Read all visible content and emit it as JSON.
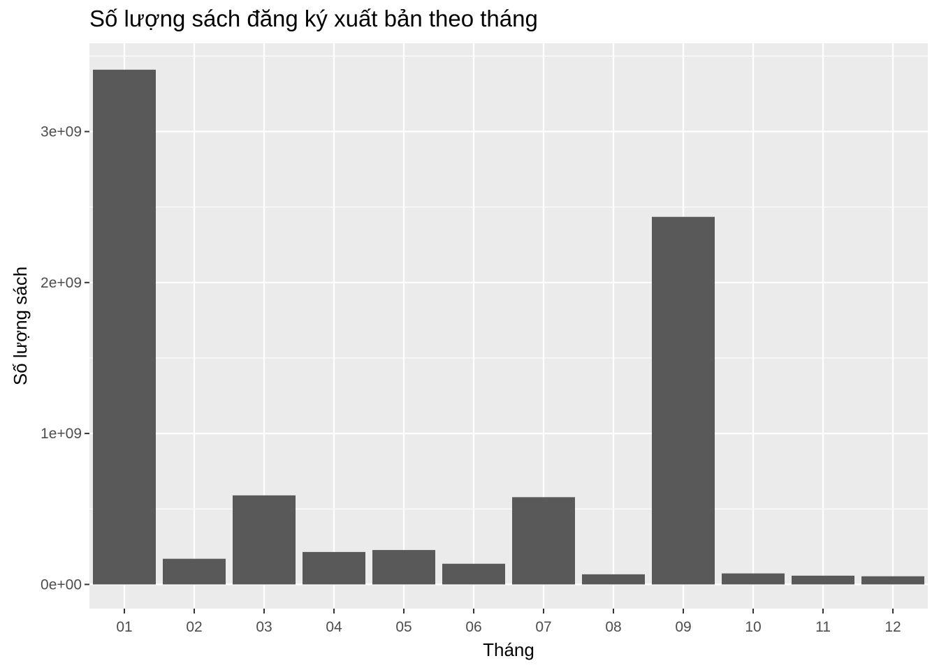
{
  "chart_data": {
    "type": "bar",
    "title": "Số lượng sách đăng ký xuất bản theo tháng",
    "xlabel": "Tháng",
    "ylabel": "Số lượng sách",
    "categories": [
      "01",
      "02",
      "03",
      "04",
      "05",
      "06",
      "07",
      "08",
      "09",
      "10",
      "11",
      "12"
    ],
    "values": [
      3410000000,
      170000000,
      590000000,
      215000000,
      228000000,
      137000000,
      578000000,
      67000000,
      2435000000,
      73000000,
      58000000,
      54000000
    ],
    "ylim": [
      -160000000,
      3585000000
    ],
    "yticks": [
      0,
      1000000000,
      2000000000,
      3000000000
    ],
    "ytick_labels": [
      "0e+00",
      "1e+09",
      "2e+09",
      "3e+09"
    ],
    "grid": true,
    "bar_color": "#595959",
    "panel_background": "#ebebeb",
    "grid_color": "#ffffff"
  }
}
